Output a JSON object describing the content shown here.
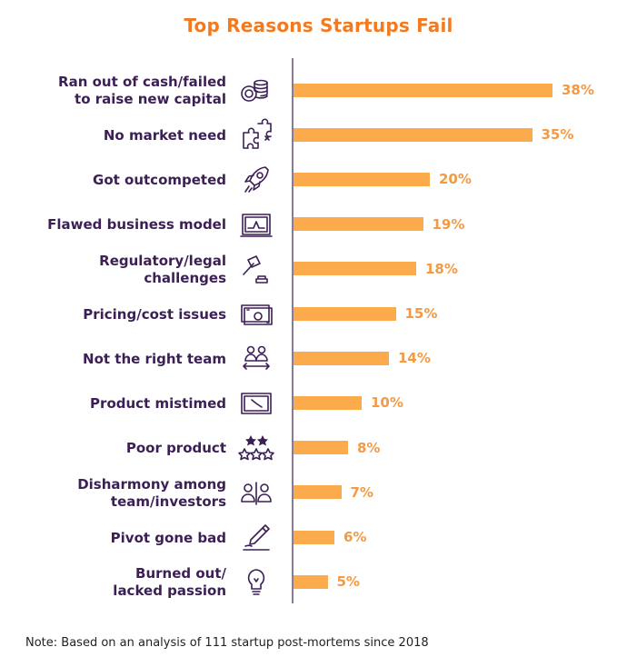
{
  "title": "Top Reasons Startups Fail",
  "note": "Note: Based on an analysis of 111 startup post-mortems since 2018",
  "colors": {
    "title": "#f47a20",
    "bar": "#fbab4c",
    "value": "#f39a45",
    "label": "#3b1f55",
    "axis": "#8a7a95"
  },
  "chart_data": {
    "type": "bar",
    "orientation": "horizontal",
    "title": "Top Reasons Startups Fail",
    "value_suffix": "%",
    "xlim": [
      0,
      40
    ],
    "grid": false,
    "categories": [
      [
        "Ran out of cash/failed",
        "to raise new capital"
      ],
      [
        "No market need"
      ],
      [
        "Got outcompeted"
      ],
      [
        "Flawed business model"
      ],
      [
        "Regulatory/legal",
        "challenges"
      ],
      [
        "Pricing/cost issues"
      ],
      [
        "Not the right team"
      ],
      [
        "Product mistimed"
      ],
      [
        "Poor product"
      ],
      [
        "Disharmony among",
        "team/investors"
      ],
      [
        "Pivot gone bad"
      ],
      [
        "Burned out/",
        "lacked passion"
      ]
    ],
    "values": [
      38,
      35,
      20,
      19,
      18,
      15,
      14,
      10,
      8,
      7,
      6,
      5
    ],
    "value_labels": [
      "38%",
      "35%",
      "20%",
      "19%",
      "18%",
      "15%",
      "14%",
      "10%",
      "8%",
      "7%",
      "6%",
      "5%"
    ],
    "icons": [
      "coin-stack-icon",
      "puzzle-icon",
      "rocket-icon",
      "chart-board-icon",
      "gavel-icon",
      "banknotes-icon",
      "team-swap-icon",
      "clock-board-icon",
      "star-rating-icon",
      "split-people-icon",
      "pen-icon",
      "lightbulb-icon"
    ]
  }
}
